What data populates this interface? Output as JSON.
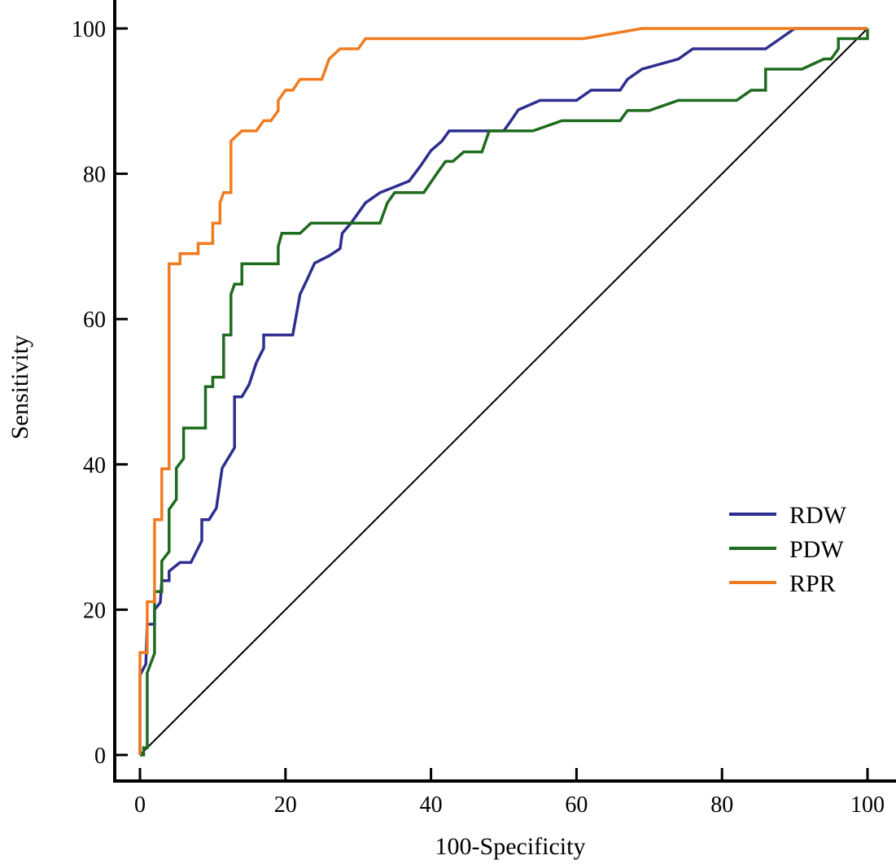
{
  "chart_data": {
    "type": "line",
    "xlabel": "100-Specificity",
    "ylabel": "Sensitivity",
    "xlim": [
      0,
      100
    ],
    "ylim": [
      0,
      100
    ],
    "x_ticks": [
      "0",
      "20",
      "40",
      "60",
      "80",
      "100"
    ],
    "y_ticks": [
      "0",
      "20",
      "40",
      "60",
      "80",
      "100"
    ],
    "grid": false,
    "legend_position": "right",
    "reference_line": {
      "x": [
        0,
        100
      ],
      "y": [
        0,
        100
      ],
      "color": "#000000"
    },
    "series": [
      {
        "name": "RDW",
        "color": "#2e2e8f",
        "points": [
          [
            0,
            0
          ],
          [
            0,
            11
          ],
          [
            0.8,
            12.5
          ],
          [
            1,
            18
          ],
          [
            2,
            18
          ],
          [
            2,
            20
          ],
          [
            2.8,
            21
          ],
          [
            3,
            24
          ],
          [
            4,
            24
          ],
          [
            4,
            25.3
          ],
          [
            5.5,
            26.5
          ],
          [
            7,
            26.5
          ],
          [
            8.5,
            29.5
          ],
          [
            8.5,
            32.4
          ],
          [
            9.5,
            32.4
          ],
          [
            10.5,
            34
          ],
          [
            11.3,
            39.5
          ],
          [
            13,
            42.3
          ],
          [
            13,
            49.3
          ],
          [
            14,
            49.3
          ],
          [
            15,
            51
          ],
          [
            16,
            54
          ],
          [
            17,
            56
          ],
          [
            17,
            57.8
          ],
          [
            19,
            57.8
          ],
          [
            21,
            57.8
          ],
          [
            22,
            63.4
          ],
          [
            23,
            65.5
          ],
          [
            24,
            67.7
          ],
          [
            26,
            68.7
          ],
          [
            27.5,
            69.7
          ],
          [
            27.8,
            71.8
          ],
          [
            29,
            73.2
          ],
          [
            30,
            74.6
          ],
          [
            31,
            76
          ],
          [
            33,
            77.4
          ],
          [
            35,
            78.2
          ],
          [
            37,
            79
          ],
          [
            38.5,
            81
          ],
          [
            40,
            83.2
          ],
          [
            41.5,
            84.5
          ],
          [
            42.5,
            85.9
          ],
          [
            46,
            85.9
          ],
          [
            50,
            85.9
          ],
          [
            51,
            87.3
          ],
          [
            52,
            88.8
          ],
          [
            55,
            90.1
          ],
          [
            60,
            90.1
          ],
          [
            62,
            91.5
          ],
          [
            66,
            91.5
          ],
          [
            67,
            93
          ],
          [
            69,
            94.4
          ],
          [
            74,
            95.8
          ],
          [
            76,
            97.2
          ],
          [
            86,
            97.2
          ],
          [
            88,
            98.6
          ],
          [
            90,
            100
          ],
          [
            100,
            100
          ]
        ]
      },
      {
        "name": "PDW",
        "color": "#1e6b1e",
        "points": [
          [
            0,
            0
          ],
          [
            0.5,
            0
          ],
          [
            0.5,
            1
          ],
          [
            1,
            1
          ],
          [
            1,
            11.3
          ],
          [
            2,
            14
          ],
          [
            2,
            22.5
          ],
          [
            3,
            22.5
          ],
          [
            3,
            26.7
          ],
          [
            4,
            28
          ],
          [
            4,
            33.8
          ],
          [
            5,
            35.2
          ],
          [
            5,
            39.5
          ],
          [
            6,
            40.8
          ],
          [
            6,
            45
          ],
          [
            9,
            45
          ],
          [
            9,
            50.7
          ],
          [
            10,
            50.7
          ],
          [
            10,
            52
          ],
          [
            11,
            52
          ],
          [
            11.5,
            52
          ],
          [
            11.5,
            57.8
          ],
          [
            12.5,
            57.8
          ],
          [
            12.5,
            63.4
          ],
          [
            13,
            64.8
          ],
          [
            14,
            64.8
          ],
          [
            14,
            67.6
          ],
          [
            16,
            67.6
          ],
          [
            19,
            67.6
          ],
          [
            19,
            70
          ],
          [
            19.5,
            71.8
          ],
          [
            22,
            71.8
          ],
          [
            23.5,
            73.2
          ],
          [
            29,
            73.2
          ],
          [
            33,
            73.2
          ],
          [
            34,
            76
          ],
          [
            35,
            77.4
          ],
          [
            37,
            77.4
          ],
          [
            39,
            77.4
          ],
          [
            41,
            80.3
          ],
          [
            42,
            81.7
          ],
          [
            43,
            81.7
          ],
          [
            44.5,
            83
          ],
          [
            47,
            83
          ],
          [
            48,
            85.9
          ],
          [
            54,
            85.9
          ],
          [
            58,
            87.3
          ],
          [
            66,
            87.3
          ],
          [
            67,
            88.7
          ],
          [
            70,
            88.7
          ],
          [
            74,
            90.1
          ],
          [
            78,
            90.1
          ],
          [
            82,
            90.1
          ],
          [
            84,
            91.5
          ],
          [
            86,
            91.5
          ],
          [
            86,
            94.4
          ],
          [
            91,
            94.4
          ],
          [
            94,
            95.8
          ],
          [
            95,
            95.8
          ],
          [
            96,
            97.2
          ],
          [
            96,
            98.6
          ],
          [
            100,
            98.6
          ],
          [
            100,
            100
          ]
        ]
      },
      {
        "name": "RPR",
        "color": "#f07b1f",
        "points": [
          [
            0,
            0
          ],
          [
            0,
            14.1
          ],
          [
            1,
            14.1
          ],
          [
            1,
            21.1
          ],
          [
            2,
            21.1
          ],
          [
            2,
            32.4
          ],
          [
            3,
            32.4
          ],
          [
            3,
            39.4
          ],
          [
            4,
            39.4
          ],
          [
            4,
            67.6
          ],
          [
            5.5,
            67.6
          ],
          [
            5.5,
            69
          ],
          [
            8,
            69
          ],
          [
            8,
            70.4
          ],
          [
            9,
            70.4
          ],
          [
            10,
            70.4
          ],
          [
            10,
            73.2
          ],
          [
            11,
            73.2
          ],
          [
            11,
            76
          ],
          [
            11.5,
            77.4
          ],
          [
            12.5,
            77.4
          ],
          [
            12.5,
            84.5
          ],
          [
            14,
            85.9
          ],
          [
            15,
            85.9
          ],
          [
            16,
            85.9
          ],
          [
            17,
            87.3
          ],
          [
            18,
            87.3
          ],
          [
            19,
            88.7
          ],
          [
            19,
            90.1
          ],
          [
            20,
            91.5
          ],
          [
            21,
            91.5
          ],
          [
            22,
            93
          ],
          [
            24,
            93
          ],
          [
            25,
            93
          ],
          [
            26,
            95.8
          ],
          [
            27.5,
            97.2
          ],
          [
            30,
            97.2
          ],
          [
            31,
            98.6
          ],
          [
            33,
            98.6
          ],
          [
            50,
            98.6
          ],
          [
            61,
            98.6
          ],
          [
            69,
            100
          ],
          [
            100,
            100
          ]
        ]
      }
    ]
  }
}
